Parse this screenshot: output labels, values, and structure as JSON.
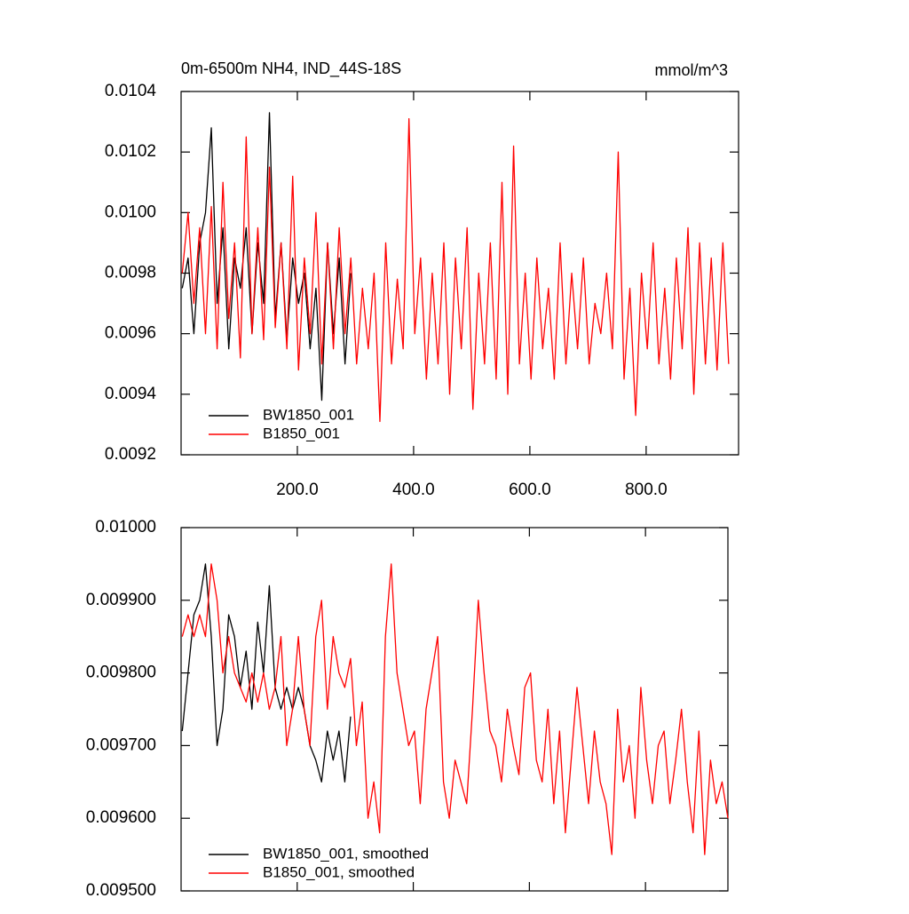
{
  "chart_data": [
    {
      "type": "line",
      "title": "0m-6500m NH4, IND_44S-18S",
      "units": "mmol/m^3",
      "xlim": [
        0,
        959
      ],
      "ylim": [
        0.0092,
        0.0104
      ],
      "xticks": [
        {
          "value": 200,
          "label": "200.0"
        },
        {
          "value": 400,
          "label": "400.0"
        },
        {
          "value": 600,
          "label": "600.0"
        },
        {
          "value": 800,
          "label": "800.0"
        }
      ],
      "yticks": [
        0.0092,
        0.0094,
        0.0096,
        0.0098,
        {
          "value": 0.01,
          "label": "0.0100"
        },
        0.0102,
        0.0104
      ],
      "series": [
        {
          "name": "BW1850_001",
          "color": "#000000",
          "x": [
            2,
            12,
            22,
            32,
            42,
            52,
            62,
            72,
            82,
            92,
            102,
            112,
            122,
            132,
            142,
            152,
            162,
            172,
            182,
            192,
            202,
            212,
            222,
            232,
            242,
            252,
            262,
            272,
            282,
            292
          ],
          "values": [
            0.00975,
            0.00985,
            0.0096,
            0.0099,
            0.01,
            0.01028,
            0.0097,
            0.00995,
            0.00955,
            0.00985,
            0.00975,
            0.00995,
            0.0096,
            0.0099,
            0.0097,
            0.01033,
            0.00965,
            0.0099,
            0.00958,
            0.00985,
            0.0097,
            0.0098,
            0.00955,
            0.00975,
            0.00938,
            0.0099,
            0.0096,
            0.00985,
            0.0095,
            0.0098
          ]
        },
        {
          "name": "B1850_001",
          "color": "#ff0000",
          "x": [
            2,
            12,
            22,
            32,
            42,
            52,
            62,
            72,
            82,
            92,
            102,
            112,
            122,
            132,
            142,
            152,
            162,
            172,
            182,
            192,
            202,
            212,
            222,
            232,
            242,
            252,
            262,
            272,
            282,
            292,
            302,
            312,
            322,
            332,
            342,
            352,
            362,
            372,
            382,
            392,
            402,
            412,
            422,
            432,
            442,
            452,
            462,
            472,
            482,
            492,
            502,
            512,
            522,
            532,
            542,
            552,
            562,
            572,
            582,
            592,
            602,
            612,
            622,
            632,
            642,
            652,
            662,
            672,
            682,
            692,
            702,
            712,
            722,
            732,
            742,
            752,
            762,
            772,
            782,
            792,
            802,
            812,
            822,
            832,
            842,
            852,
            862,
            872,
            882,
            892,
            902,
            912,
            922,
            932,
            942
          ],
          "values": [
            0.0098,
            0.01,
            0.0097,
            0.00995,
            0.0096,
            0.01002,
            0.00955,
            0.0101,
            0.00965,
            0.0099,
            0.00952,
            0.01025,
            0.0096,
            0.00995,
            0.00958,
            0.01015,
            0.00962,
            0.0099,
            0.00955,
            0.01012,
            0.00948,
            0.00985,
            0.0096,
            0.01,
            0.0095,
            0.0099,
            0.00955,
            0.00995,
            0.0096,
            0.00985,
            0.0095,
            0.00975,
            0.00955,
            0.0098,
            0.00931,
            0.0099,
            0.0095,
            0.00978,
            0.00955,
            0.01031,
            0.0096,
            0.00985,
            0.00945,
            0.0098,
            0.0095,
            0.0099,
            0.0094,
            0.00985,
            0.00955,
            0.00995,
            0.00935,
            0.0098,
            0.0095,
            0.0099,
            0.00945,
            0.0101,
            0.0094,
            0.01022,
            0.0095,
            0.0098,
            0.00945,
            0.00985,
            0.00955,
            0.00975,
            0.00945,
            0.0099,
            0.0095,
            0.0098,
            0.00955,
            0.00985,
            0.0095,
            0.0097,
            0.0096,
            0.0098,
            0.00955,
            0.0102,
            0.00945,
            0.00975,
            0.00933,
            0.0098,
            0.00955,
            0.0099,
            0.0095,
            0.00975,
            0.00945,
            0.00985,
            0.00955,
            0.00995,
            0.0094,
            0.0099,
            0.0095,
            0.00985,
            0.00948,
            0.0099,
            0.0095
          ]
        }
      ]
    },
    {
      "type": "line",
      "xlim": [
        0,
        942
      ],
      "ylim": [
        0.0095,
        0.01
      ],
      "xticks": [
        200,
        400,
        600,
        800
      ],
      "yticks": [
        {
          "value": 0.0095,
          "label": "0.009500"
        },
        {
          "value": 0.0096,
          "label": "0.009600"
        },
        {
          "value": 0.0097,
          "label": "0.009700"
        },
        {
          "value": 0.0098,
          "label": "0.009800"
        },
        {
          "value": 0.0099,
          "label": "0.009900"
        },
        {
          "value": 0.01,
          "label": "0.01000"
        }
      ],
      "series": [
        {
          "name": "BW1850_001, smoothed",
          "color": "#000000",
          "x": [
            2,
            12,
            22,
            32,
            42,
            52,
            62,
            72,
            82,
            92,
            102,
            112,
            122,
            132,
            142,
            152,
            162,
            172,
            182,
            192,
            202,
            212,
            222,
            232,
            242,
            252,
            262,
            272,
            282,
            292
          ],
          "values": [
            0.00972,
            0.0098,
            0.00988,
            0.0099,
            0.00995,
            0.00985,
            0.0097,
            0.00975,
            0.00988,
            0.00985,
            0.00978,
            0.00983,
            0.00975,
            0.00987,
            0.0098,
            0.00992,
            0.00978,
            0.00975,
            0.00978,
            0.00975,
            0.00978,
            0.00975,
            0.0097,
            0.00968,
            0.00965,
            0.00972,
            0.00968,
            0.00972,
            0.00965,
            0.00974
          ]
        },
        {
          "name": "B1850_001, smoothed",
          "color": "#ff0000",
          "x": [
            2,
            12,
            22,
            32,
            42,
            52,
            62,
            72,
            82,
            92,
            102,
            112,
            122,
            132,
            142,
            152,
            162,
            172,
            182,
            192,
            202,
            212,
            222,
            232,
            242,
            252,
            262,
            272,
            282,
            292,
            302,
            312,
            322,
            332,
            342,
            352,
            362,
            372,
            382,
            392,
            402,
            412,
            422,
            432,
            442,
            452,
            462,
            472,
            482,
            492,
            502,
            512,
            522,
            532,
            542,
            552,
            562,
            572,
            582,
            592,
            602,
            612,
            622,
            632,
            642,
            652,
            662,
            672,
            682,
            692,
            702,
            712,
            722,
            732,
            742,
            752,
            762,
            772,
            782,
            792,
            802,
            812,
            822,
            832,
            842,
            852,
            862,
            872,
            882,
            892,
            902,
            912,
            922,
            932,
            942
          ],
          "values": [
            0.00985,
            0.00988,
            0.00985,
            0.00988,
            0.00985,
            0.00995,
            0.0099,
            0.0098,
            0.00985,
            0.0098,
            0.00978,
            0.00976,
            0.0098,
            0.00976,
            0.0098,
            0.00975,
            0.00978,
            0.00985,
            0.0097,
            0.00975,
            0.00985,
            0.00975,
            0.0097,
            0.00985,
            0.0099,
            0.00975,
            0.00985,
            0.0098,
            0.00978,
            0.00982,
            0.0097,
            0.00976,
            0.0096,
            0.00965,
            0.00958,
            0.00985,
            0.00995,
            0.0098,
            0.00975,
            0.0097,
            0.00972,
            0.00962,
            0.00975,
            0.0098,
            0.00985,
            0.00965,
            0.0096,
            0.00968,
            0.00965,
            0.00962,
            0.00975,
            0.0099,
            0.0098,
            0.00972,
            0.0097,
            0.00965,
            0.00975,
            0.0097,
            0.00966,
            0.00978,
            0.0098,
            0.00968,
            0.00965,
            0.00975,
            0.00962,
            0.00972,
            0.00958,
            0.00968,
            0.00978,
            0.0097,
            0.00962,
            0.00972,
            0.00965,
            0.00962,
            0.00955,
            0.00975,
            0.00965,
            0.0097,
            0.0096,
            0.00978,
            0.00968,
            0.00962,
            0.0097,
            0.00972,
            0.00962,
            0.00968,
            0.00975,
            0.00965,
            0.00958,
            0.00972,
            0.00955,
            0.00968,
            0.00962,
            0.00965,
            0.0096
          ]
        }
      ]
    }
  ]
}
